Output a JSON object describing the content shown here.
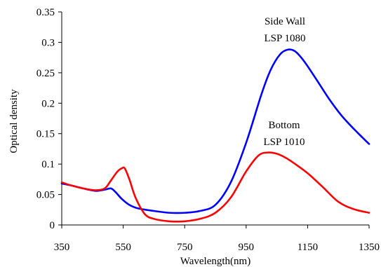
{
  "chart_data": {
    "type": "line",
    "title": "",
    "xlabel": "Wavelength(nm)",
    "ylabel": "Optical density",
    "xlim": [
      350,
      1350
    ],
    "ylim": [
      0,
      0.35
    ],
    "grid": false,
    "x_ticks": [
      "350",
      "550",
      "750",
      "950",
      "1150",
      "1350"
    ],
    "y_ticks": [
      "0",
      "0.05",
      "0.1",
      "0.15",
      "0.2",
      "0.25",
      "0.3",
      "0.35"
    ],
    "x_tick_values": [
      350,
      550,
      750,
      950,
      1150,
      1350
    ],
    "y_tick_values": [
      0,
      0.05,
      0.1,
      0.15,
      0.2,
      0.25,
      0.3,
      0.35
    ],
    "series": [
      {
        "color": "#0000ff",
        "x": [
          350,
          380,
          420,
          460,
          490,
          510,
          525,
          545,
          570,
          600,
          650,
          700,
          750,
          800,
          850,
          900,
          950,
          1000,
          1030,
          1060,
          1085,
          1110,
          1140,
          1180,
          1220,
          1260,
          1300,
          1350
        ],
        "y": [
          0.068,
          0.065,
          0.06,
          0.056,
          0.058,
          0.06,
          0.054,
          0.043,
          0.033,
          0.027,
          0.023,
          0.02,
          0.02,
          0.023,
          0.033,
          0.07,
          0.135,
          0.215,
          0.255,
          0.28,
          0.288,
          0.285,
          0.268,
          0.238,
          0.207,
          0.18,
          0.158,
          0.133
        ]
      },
      {
        "color": "#ff0000",
        "x": [
          350,
          380,
          420,
          460,
          490,
          510,
          530,
          545,
          555,
          570,
          590,
          620,
          650,
          700,
          750,
          800,
          850,
          900,
          950,
          990,
          1020,
          1050,
          1080,
          1110,
          1150,
          1200,
          1250,
          1300,
          1350
        ],
        "y": [
          0.07,
          0.065,
          0.06,
          0.057,
          0.06,
          0.073,
          0.087,
          0.093,
          0.093,
          0.075,
          0.045,
          0.018,
          0.01,
          0.006,
          0.006,
          0.01,
          0.02,
          0.045,
          0.088,
          0.114,
          0.119,
          0.117,
          0.11,
          0.1,
          0.085,
          0.062,
          0.038,
          0.026,
          0.02
        ]
      }
    ],
    "annotations": [
      {
        "lines": [
          "Side Wall",
          "LSP 1080"
        ]
      },
      {
        "lines": [
          "Bottom",
          "LSP 1010"
        ]
      }
    ]
  }
}
